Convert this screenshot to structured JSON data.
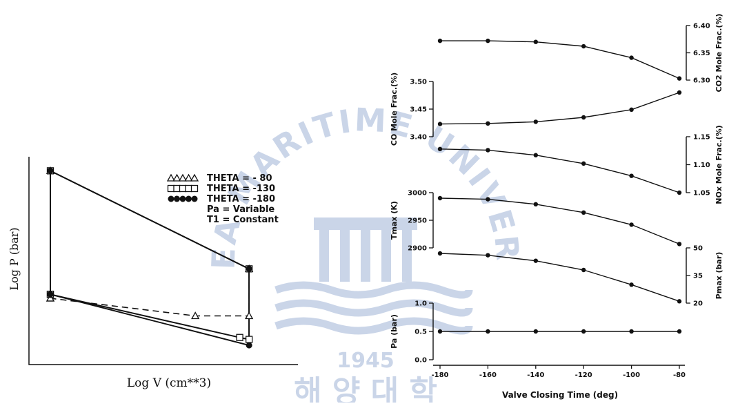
{
  "watermark": {
    "top_text": "KOREA MARITIME UNIVERSITY",
    "year": "1945",
    "bottom_text": "해 양 대 학",
    "color": "#9fb3d6"
  },
  "colors": {
    "ink": "#111111",
    "paper": "#ffffff"
  },
  "chart_data": [
    {
      "type": "line",
      "title": "",
      "xlabel": "Log V (cm**3)",
      "ylabel": "Log P (bar)",
      "grid": false,
      "legend_position": "top-right",
      "legend": [
        {
          "marker": "triangle-open",
          "marker_text": "ΔΔΔΔΔ",
          "label": "THETA = - 80"
        },
        {
          "marker": "square-open",
          "marker_text": "□□□□□",
          "label": "THETA = -130"
        },
        {
          "marker": "circle-filled",
          "marker_text": "●●●●●",
          "label": "THETA = -180"
        }
      ],
      "annotations": [
        "Pa = Variable",
        "T1 = Constant"
      ],
      "series": [
        {
          "name": "THETA = - 80",
          "marker": "triangle-open",
          "dash": true,
          "x": [
            0.0,
            0.0,
            0.85,
            0.85,
            0.62,
            0.0
          ],
          "y": [
            0.31,
            0.96,
            0.46,
            0.22,
            0.22,
            0.31
          ]
        },
        {
          "name": "THETA = -130",
          "marker": "square-open",
          "dash": false,
          "x": [
            0.0,
            0.0,
            0.85,
            0.85,
            0.81,
            0.0
          ],
          "y": [
            0.33,
            0.96,
            0.46,
            0.1,
            0.11,
            0.33
          ]
        },
        {
          "name": "THETA = -180",
          "marker": "circle-filled",
          "dash": false,
          "x": [
            0.0,
            0.0,
            0.85,
            0.85,
            0.0
          ],
          "y": [
            0.33,
            0.96,
            0.46,
            0.07,
            0.33
          ]
        }
      ]
    },
    {
      "type": "line",
      "xlabel": "Valve Closing Time (deg)",
      "x": [
        -180,
        -160,
        -140,
        -120,
        -100,
        -80
      ],
      "xticks": [
        "-180",
        "-160",
        "-140",
        "-120",
        "-100",
        "-80"
      ],
      "xlim": [
        -180,
        -80
      ],
      "panels": [
        {
          "name": "CO2",
          "ylabel": "CO2 Mole Frac.(%)",
          "axis": "right",
          "ylim": [
            6.3,
            6.4
          ],
          "yticks": [
            "6.30",
            "6.35",
            "6.40"
          ],
          "values": [
            6.372,
            6.372,
            6.37,
            6.362,
            6.341,
            6.303
          ]
        },
        {
          "name": "CO",
          "ylabel": "CO Mole Frac.(%)",
          "axis": "left",
          "ylim": [
            3.4,
            3.5
          ],
          "yticks": [
            "3.40",
            "3.45",
            "3.50"
          ],
          "values": [
            3.423,
            3.424,
            3.427,
            3.435,
            3.449,
            3.48
          ]
        },
        {
          "name": "NOx",
          "ylabel": "NOx Mole Frac.(%)",
          "axis": "right",
          "ylim": [
            1.05,
            1.15
          ],
          "yticks": [
            "1.05",
            "1.10",
            "1.15"
          ],
          "values": [
            1.128,
            1.126,
            1.117,
            1.102,
            1.08,
            1.05
          ]
        },
        {
          "name": "Tmax",
          "ylabel": "Tmax (K)",
          "axis": "left",
          "ylim": [
            2900,
            3000
          ],
          "yticks": [
            "2900",
            "2950",
            "3000"
          ],
          "values": [
            2990,
            2988,
            2979,
            2964,
            2942,
            2907
          ]
        },
        {
          "name": "Pmax",
          "ylabel": "Pmax (bar)",
          "axis": "right",
          "ylim": [
            20,
            50
          ],
          "yticks": [
            "20",
            "35",
            "50"
          ],
          "values": [
            47,
            46,
            43,
            38,
            30,
            21
          ]
        },
        {
          "name": "Pa",
          "ylabel": "Pa (bar)",
          "axis": "left",
          "ylim": [
            0.0,
            1.0
          ],
          "yticks": [
            "0.0",
            "0.5",
            "1.0"
          ],
          "values": [
            0.5,
            0.5,
            0.5,
            0.5,
            0.5,
            0.5
          ]
        }
      ]
    }
  ]
}
